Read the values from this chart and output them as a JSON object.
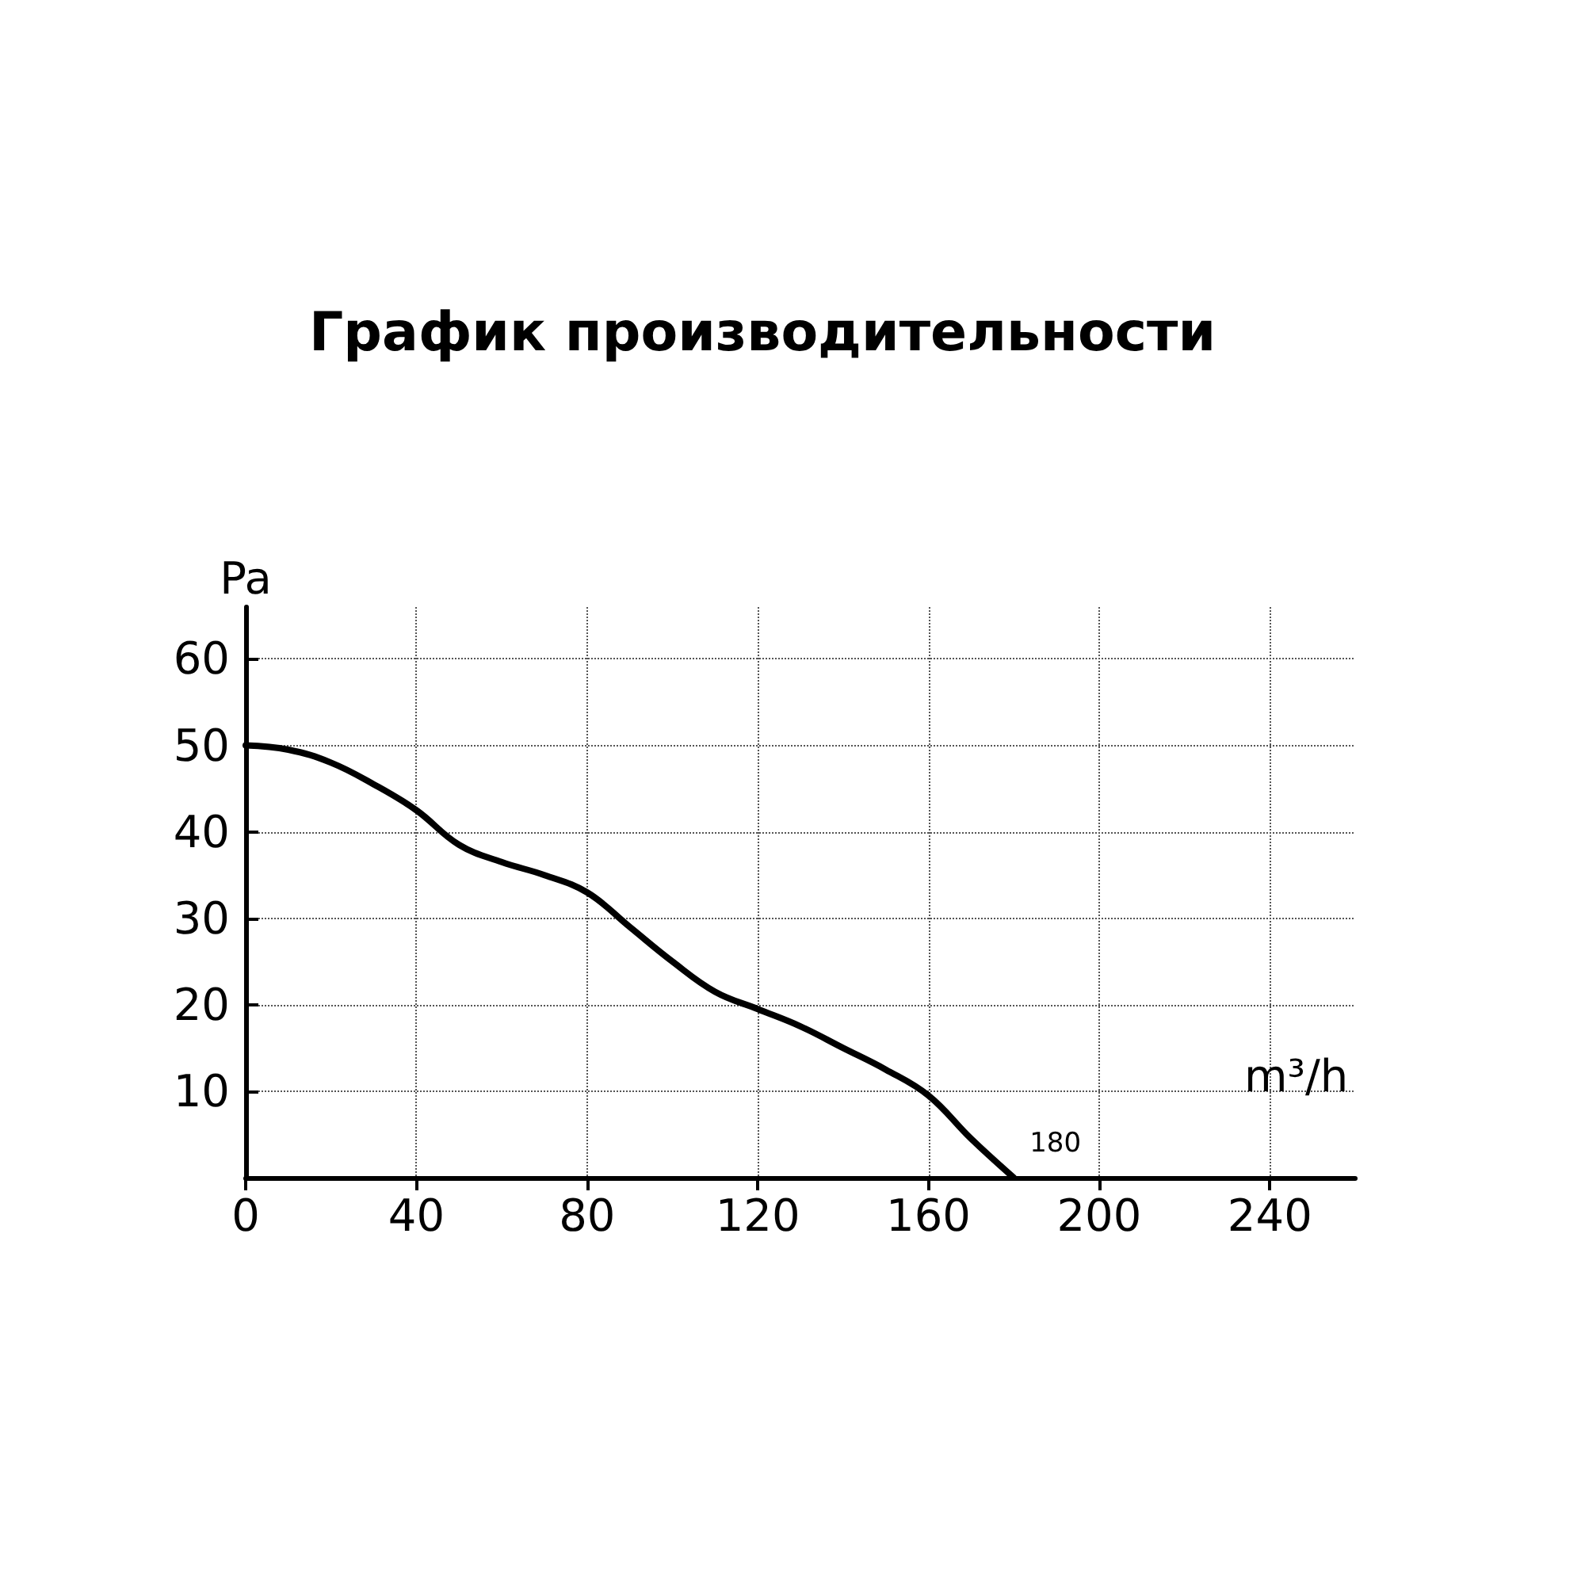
{
  "chart_data": {
    "type": "line",
    "title": "График производительности",
    "xlabel": "m³/h",
    "ylabel": "Pa",
    "x": [
      0,
      10,
      20,
      30,
      40,
      50,
      60,
      70,
      80,
      90,
      100,
      110,
      120,
      130,
      140,
      150,
      160,
      170,
      180
    ],
    "series": [
      {
        "color": "#000000",
        "values": [
          50,
          49.5,
          48,
          45.5,
          42.5,
          38.5,
          36.5,
          35,
          33,
          29,
          25,
          21.5,
          19.5,
          17.5,
          15,
          12.5,
          9.5,
          4.5,
          0
        ]
      }
    ],
    "xlim": [
      0,
      260
    ],
    "ylim": [
      0,
      66
    ],
    "xticks": [
      0,
      40,
      80,
      120,
      160,
      200,
      240
    ],
    "yticks": [
      10,
      20,
      30,
      40,
      50,
      60
    ],
    "grid": true,
    "marker": "none",
    "line_style": "solid",
    "annotations": [
      {
        "text": "180",
        "x": 180,
        "y": 0
      }
    ]
  }
}
